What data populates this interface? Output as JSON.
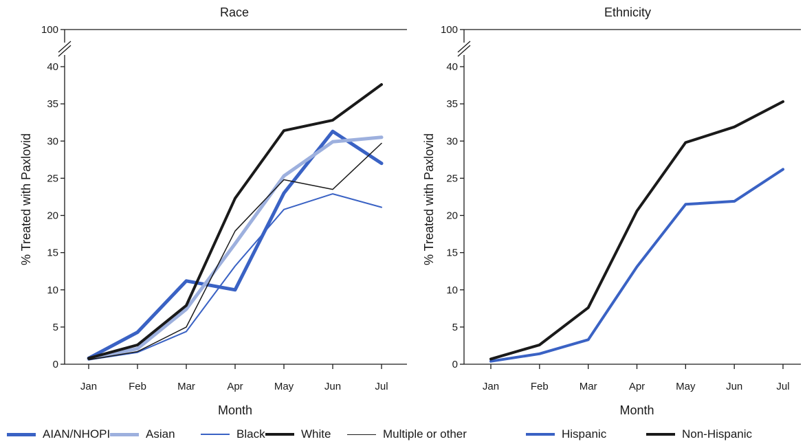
{
  "chart_data": [
    {
      "type": "line",
      "title": "Race",
      "xlabel": "Month",
      "ylabel": "% Treated with Paxlovid",
      "categories": [
        "Jan",
        "Feb",
        "Mar",
        "Apr",
        "May",
        "Jun",
        "Jul"
      ],
      "y_ticks": [
        "0",
        "5",
        "10",
        "15",
        "20",
        "25",
        "30",
        "35",
        "40"
      ],
      "y_break_label": "100",
      "ylim": [
        0,
        40
      ],
      "axis_break": true,
      "grid": false,
      "legend_position": "bottom",
      "series": [
        {
          "name": "AIAN/NHOPI",
          "color": "#3a62c4",
          "width": 5,
          "values": [
            0.8,
            4.3,
            11.2,
            10.0,
            23.0,
            31.3,
            27.0
          ]
        },
        {
          "name": "Asian",
          "color": "#9db0de",
          "width": 5,
          "values": [
            0.7,
            2.1,
            7.4,
            16.2,
            25.3,
            29.9,
            30.5
          ]
        },
        {
          "name": "Black",
          "color": "#3a62c4",
          "width": 2,
          "values": [
            0.6,
            1.6,
            4.4,
            13.2,
            20.8,
            22.9,
            21.1
          ]
        },
        {
          "name": "White",
          "color": "#1a1a1a",
          "width": 4,
          "values": [
            0.8,
            2.6,
            7.9,
            22.3,
            31.4,
            32.8,
            37.6
          ]
        },
        {
          "name": "Multiple or other",
          "color": "#1a1a1a",
          "width": 1.5,
          "values": [
            0.6,
            1.7,
            5.0,
            17.9,
            24.8,
            23.5,
            29.7
          ]
        }
      ]
    },
    {
      "type": "line",
      "title": "Ethnicity",
      "xlabel": "Month",
      "ylabel": "% Treated with Paxlovid",
      "categories": [
        "Jan",
        "Feb",
        "Mar",
        "Apr",
        "May",
        "Jun",
        "Jul"
      ],
      "y_ticks": [
        "0",
        "5",
        "10",
        "15",
        "20",
        "25",
        "30",
        "35",
        "40"
      ],
      "y_break_label": "100",
      "ylim": [
        0,
        40
      ],
      "axis_break": true,
      "grid": false,
      "legend_position": "bottom",
      "series": [
        {
          "name": "Hispanic",
          "color": "#3a62c4",
          "width": 4,
          "values": [
            0.4,
            1.4,
            3.3,
            13.1,
            21.5,
            21.9,
            26.2
          ]
        },
        {
          "name": "Non-Hispanic",
          "color": "#1a1a1a",
          "width": 4,
          "values": [
            0.7,
            2.6,
            7.6,
            20.6,
            29.8,
            31.9,
            35.3
          ]
        }
      ]
    }
  ]
}
